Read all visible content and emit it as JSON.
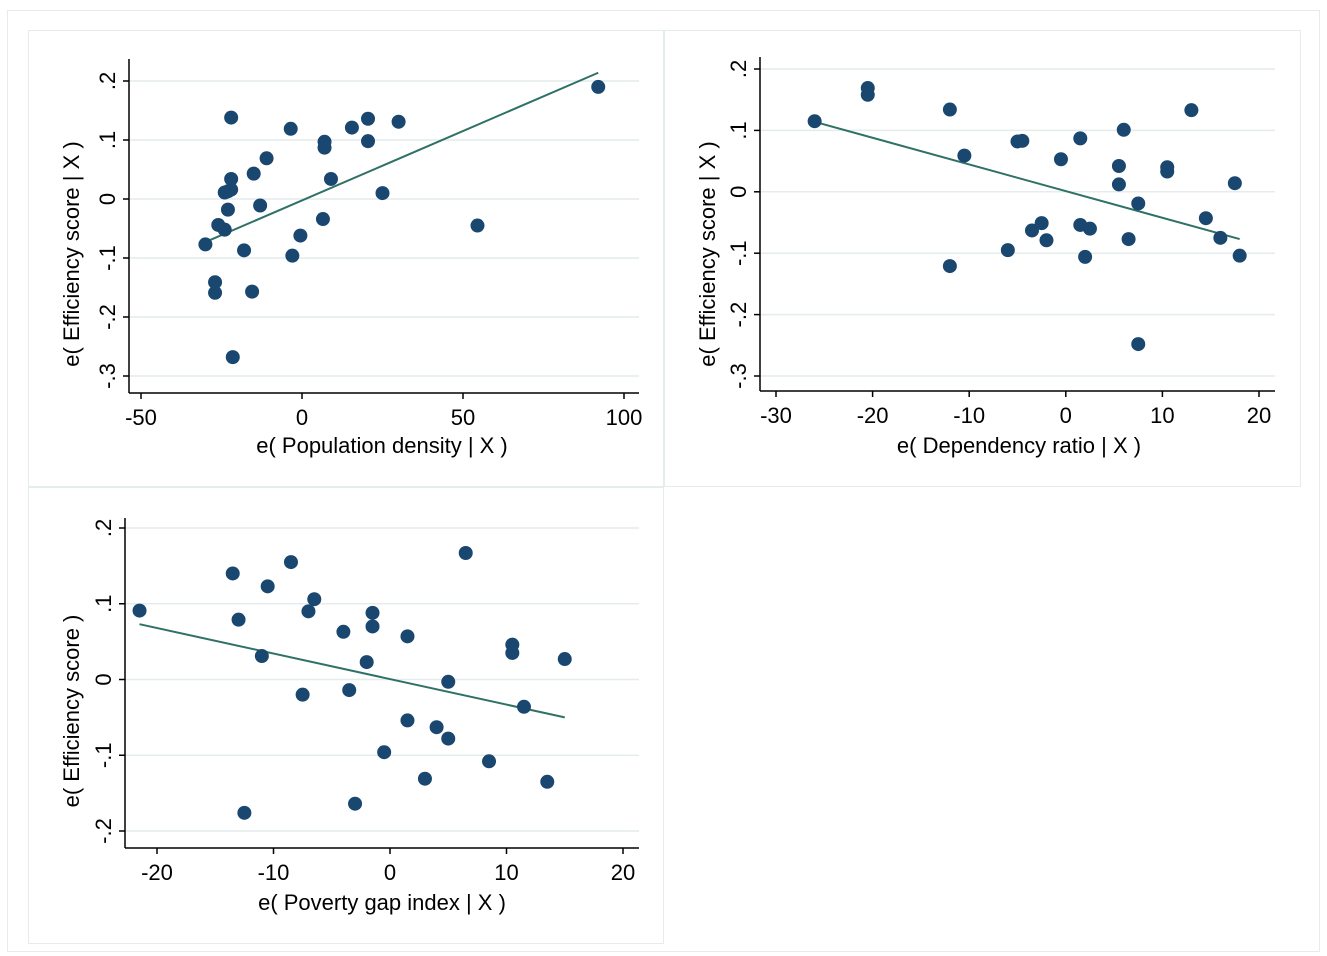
{
  "colors": {
    "marker": "#1a476f",
    "fit_line": "#2f7166",
    "gridline": "#e4ecee",
    "axis": "#000000"
  },
  "chart_data": [
    {
      "type": "scatter",
      "title": "",
      "xlabel": "e( Population density | X )",
      "ylabel": "e( Efficiency score | X )",
      "xlim": [
        -50,
        100
      ],
      "ylim": [
        -0.3,
        0.2
      ],
      "xticks": [
        -50,
        0,
        50,
        100
      ],
      "xtick_labels": [
        "-50",
        "0",
        "50",
        "100"
      ],
      "yticks": [
        -0.3,
        -0.2,
        -0.1,
        0,
        0.1,
        0.2
      ],
      "ytick_labels": [
        "-.3",
        "-.2",
        "-.1",
        "0",
        ".1",
        ".2"
      ],
      "grid": true,
      "fit_line": {
        "x": [
          -30,
          92
        ],
        "y": [
          -0.073,
          0.214
        ]
      },
      "points": [
        {
          "x": 92,
          "y": 0.19
        },
        {
          "x": 54.5,
          "y": -0.045
        },
        {
          "x": 30,
          "y": 0.131
        },
        {
          "x": 25,
          "y": 0.01
        },
        {
          "x": 20.5,
          "y": 0.136
        },
        {
          "x": 20.5,
          "y": 0.098
        },
        {
          "x": 15.5,
          "y": 0.121
        },
        {
          "x": 9,
          "y": 0.034
        },
        {
          "x": 7,
          "y": 0.097
        },
        {
          "x": 7,
          "y": 0.087
        },
        {
          "x": 6.5,
          "y": -0.034
        },
        {
          "x": -0.5,
          "y": -0.062
        },
        {
          "x": -3.5,
          "y": 0.119
        },
        {
          "x": -3,
          "y": -0.096
        },
        {
          "x": -11,
          "y": 0.069
        },
        {
          "x": -13,
          "y": -0.011
        },
        {
          "x": -15,
          "y": 0.043
        },
        {
          "x": -15.5,
          "y": -0.157
        },
        {
          "x": -18,
          "y": -0.087
        },
        {
          "x": -22,
          "y": 0.138
        },
        {
          "x": -22,
          "y": 0.034
        },
        {
          "x": -22,
          "y": 0.016
        },
        {
          "x": -23,
          "y": 0.013
        },
        {
          "x": -24,
          "y": 0.011
        },
        {
          "x": -23,
          "y": -0.018
        },
        {
          "x": -24,
          "y": -0.052
        },
        {
          "x": -26,
          "y": -0.044
        },
        {
          "x": -27,
          "y": -0.141
        },
        {
          "x": -27,
          "y": -0.159
        },
        {
          "x": -21.5,
          "y": -0.268
        },
        {
          "x": -30,
          "y": -0.077
        }
      ]
    },
    {
      "type": "scatter",
      "title": "",
      "xlabel": "e( Dependency ratio | X )",
      "ylabel": "e( Efficiency score | X )",
      "xlim": [
        -30,
        20
      ],
      "ylim": [
        -0.3,
        0.2
      ],
      "xticks": [
        -30,
        -20,
        -10,
        0,
        10,
        20
      ],
      "xtick_labels": [
        "-30",
        "-20",
        "-10",
        "0",
        "10",
        "20"
      ],
      "yticks": [
        -0.3,
        -0.2,
        -0.1,
        0,
        0.1,
        0.2
      ],
      "ytick_labels": [
        "-.3",
        "-.2",
        "-.1",
        "0",
        ".1",
        ".2"
      ],
      "grid": true,
      "fit_line": {
        "x": [
          -26,
          18
        ],
        "y": [
          0.114,
          -0.077
        ]
      },
      "points": [
        {
          "x": -26,
          "y": 0.115
        },
        {
          "x": -20.5,
          "y": 0.169
        },
        {
          "x": -20.5,
          "y": 0.158
        },
        {
          "x": -12,
          "y": 0.134
        },
        {
          "x": -10.5,
          "y": 0.059
        },
        {
          "x": -12,
          "y": -0.121
        },
        {
          "x": -6,
          "y": -0.095
        },
        {
          "x": -5,
          "y": 0.082
        },
        {
          "x": -4.5,
          "y": 0.083
        },
        {
          "x": -3.5,
          "y": -0.063
        },
        {
          "x": -2.5,
          "y": -0.051
        },
        {
          "x": -2,
          "y": -0.079
        },
        {
          "x": -0.5,
          "y": 0.053
        },
        {
          "x": 1.5,
          "y": 0.087
        },
        {
          "x": 1.5,
          "y": -0.054
        },
        {
          "x": 2,
          "y": -0.106
        },
        {
          "x": 2.5,
          "y": -0.06
        },
        {
          "x": 5.5,
          "y": 0.012
        },
        {
          "x": 5.5,
          "y": 0.042
        },
        {
          "x": 6,
          "y": 0.101
        },
        {
          "x": 6.5,
          "y": -0.077
        },
        {
          "x": 7.5,
          "y": -0.248
        },
        {
          "x": 7.5,
          "y": -0.019
        },
        {
          "x": 10.5,
          "y": 0.04
        },
        {
          "x": 10.5,
          "y": 0.033
        },
        {
          "x": 13,
          "y": 0.133
        },
        {
          "x": 14.5,
          "y": -0.043
        },
        {
          "x": 16,
          "y": -0.075
        },
        {
          "x": 17.5,
          "y": 0.014
        },
        {
          "x": 18,
          "y": -0.104
        }
      ]
    },
    {
      "type": "scatter",
      "title": "",
      "xlabel": "e( Poverty gap index | X )",
      "ylabel": "e( Efficiency score )",
      "xlim": [
        -20,
        20
      ],
      "ylim": [
        -0.2,
        0.2
      ],
      "xticks": [
        -20,
        -10,
        0,
        10,
        20
      ],
      "xtick_labels": [
        "-20",
        "-10",
        "0",
        "10",
        "20"
      ],
      "yticks": [
        -0.2,
        -0.1,
        0,
        0.1,
        0.2
      ],
      "ytick_labels": [
        "-.2",
        "-.1",
        "0",
        ".1",
        ".2"
      ],
      "grid": true,
      "fit_line": {
        "x": [
          -21.5,
          15
        ],
        "y": [
          0.073,
          -0.05
        ]
      },
      "points": [
        {
          "x": -21.5,
          "y": 0.091
        },
        {
          "x": -13.5,
          "y": 0.14
        },
        {
          "x": -13,
          "y": 0.079
        },
        {
          "x": -12.5,
          "y": -0.176
        },
        {
          "x": -11,
          "y": 0.031
        },
        {
          "x": -10.5,
          "y": 0.123
        },
        {
          "x": -8.5,
          "y": 0.155
        },
        {
          "x": -7.5,
          "y": -0.02
        },
        {
          "x": -7,
          "y": 0.09
        },
        {
          "x": -6.5,
          "y": 0.106
        },
        {
          "x": -4,
          "y": 0.063
        },
        {
          "x": -3.5,
          "y": -0.014
        },
        {
          "x": -3,
          "y": -0.164
        },
        {
          "x": -2,
          "y": 0.023
        },
        {
          "x": -1.5,
          "y": 0.088
        },
        {
          "x": -1.5,
          "y": 0.07
        },
        {
          "x": -0.5,
          "y": -0.096
        },
        {
          "x": 1.5,
          "y": 0.057
        },
        {
          "x": 1.5,
          "y": -0.054
        },
        {
          "x": 3,
          "y": -0.131
        },
        {
          "x": 4,
          "y": -0.063
        },
        {
          "x": 5,
          "y": -0.003
        },
        {
          "x": 5,
          "y": -0.078
        },
        {
          "x": 6.5,
          "y": 0.167
        },
        {
          "x": 8.5,
          "y": -0.108
        },
        {
          "x": 10.5,
          "y": 0.046
        },
        {
          "x": 10.5,
          "y": 0.035
        },
        {
          "x": 11.5,
          "y": -0.036
        },
        {
          "x": 13.5,
          "y": -0.135
        },
        {
          "x": 15,
          "y": 0.027
        }
      ]
    }
  ]
}
